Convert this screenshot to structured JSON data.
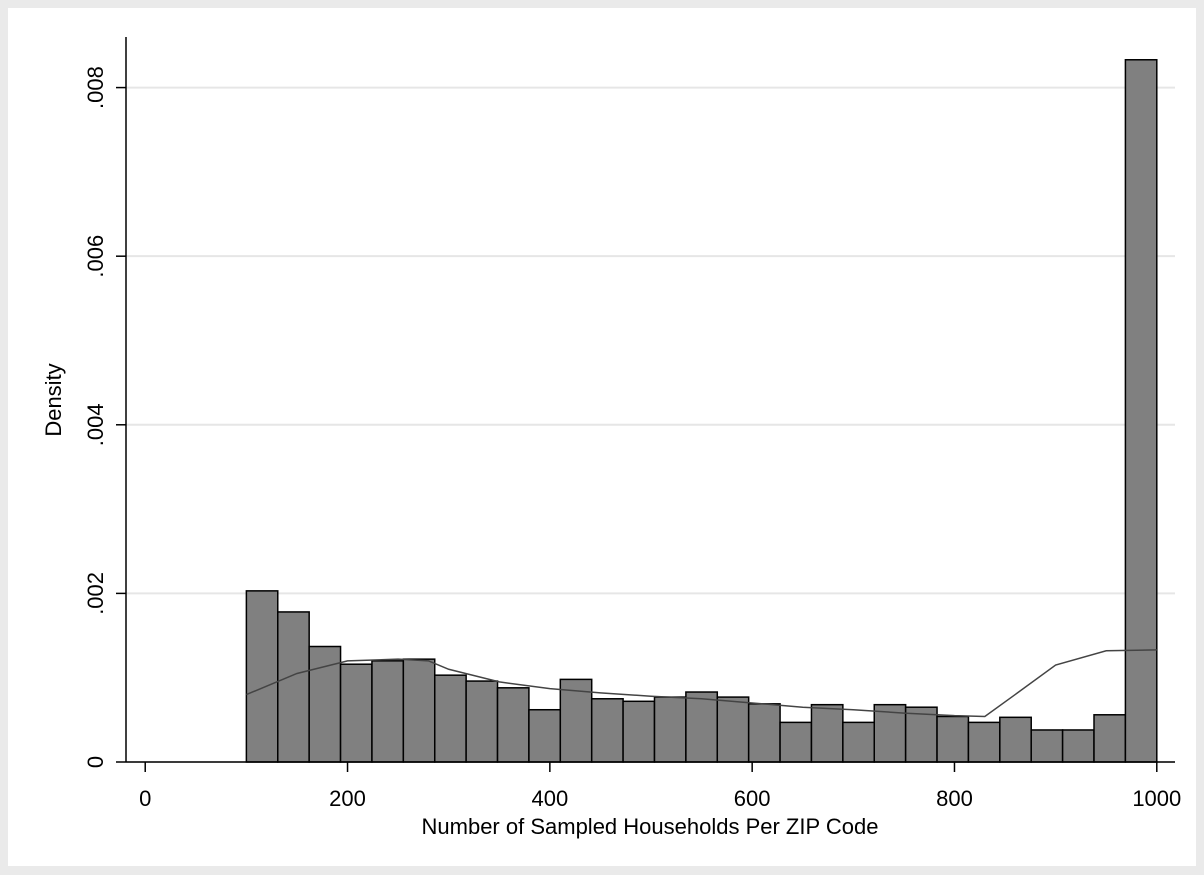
{
  "chart_data": {
    "type": "histogram",
    "x_label": "Number of Sampled Households Per ZIP Code",
    "y_label": "Density",
    "bins": [
      100,
      131.03,
      162.07,
      193.1,
      224.14,
      255.17,
      286.21,
      317.24,
      348.28,
      379.31,
      410.34,
      441.38,
      472.41,
      503.45,
      534.48,
      565.52,
      596.55,
      627.59,
      658.62,
      689.66,
      720.69,
      751.72,
      782.76,
      813.79,
      844.83,
      875.86,
      906.9,
      937.93,
      968.97,
      1000
    ],
    "values": [
      0.00203,
      0.00178,
      0.00137,
      0.00116,
      0.0012,
      0.00122,
      0.00103,
      0.00096,
      0.00088,
      0.00062,
      0.00098,
      0.00075,
      0.00072,
      0.00077,
      0.00083,
      0.00077,
      0.00069,
      0.00047,
      0.00068,
      0.00047,
      0.00068,
      0.00065,
      0.00054,
      0.00047,
      0.00053,
      0.00038,
      0.00038,
      0.00056,
      0.00833
    ],
    "color": "#808080",
    "kde": {
      "color": "#444444",
      "x": [
        100,
        150,
        200,
        250,
        280,
        300,
        350,
        400,
        450,
        500,
        550,
        600,
        650,
        700,
        750,
        800,
        830,
        860,
        900,
        950,
        1000
      ],
      "values": [
        0.0008,
        0.00105,
        0.0012,
        0.00122,
        0.0012,
        0.0011,
        0.00095,
        0.00087,
        0.00082,
        0.00078,
        0.00075,
        0.0007,
        0.00065,
        0.00062,
        0.00058,
        0.00055,
        0.00054,
        0.0008,
        0.00115,
        0.00132,
        0.00133
      ]
    },
    "xlim": [
      -19,
      1018
    ],
    "xticks": [
      0,
      200,
      400,
      600,
      800,
      1000
    ],
    "ylim": [
      0,
      0.0086
    ],
    "yticks": [
      {
        "value": 0,
        "label": "0"
      },
      {
        "value": 0.002,
        "label": ".002"
      },
      {
        "value": 0.004,
        "label": ".004"
      },
      {
        "value": 0.006,
        "label": ".006"
      },
      {
        "value": 0.008,
        "label": ".008"
      }
    ],
    "grid": true
  }
}
